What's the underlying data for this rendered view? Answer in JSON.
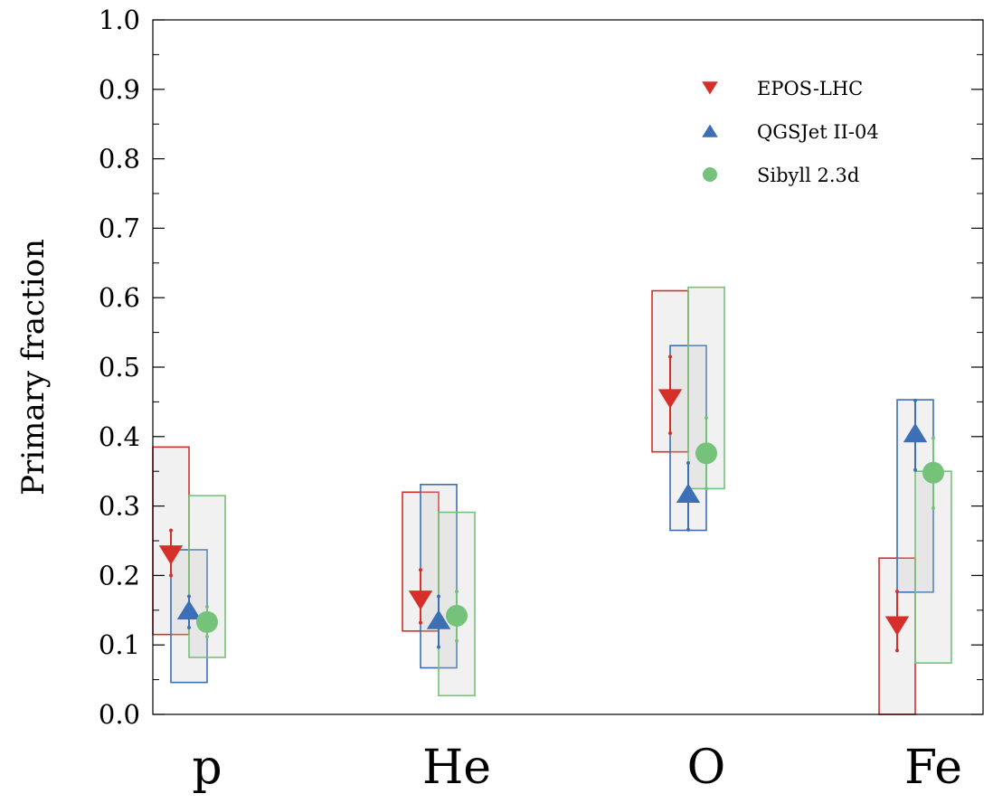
{
  "chart_data": {
    "type": "scatter",
    "title": "",
    "xlabel": "",
    "ylabel": "Primary fraction",
    "categories": [
      "p",
      "He",
      "O",
      "Fe"
    ],
    "ylim": [
      0.0,
      1.0
    ],
    "yticks": [
      "0.0",
      "0.1",
      "0.2",
      "0.3",
      "0.4",
      "0.5",
      "0.6",
      "0.7",
      "0.8",
      "0.9",
      "1.0"
    ],
    "grid": false,
    "legend_position": "top-right",
    "series": [
      {
        "name": "EPOS-LHC",
        "marker": "triangle-down",
        "color": "#d62f2a",
        "values": [
          0.23,
          0.165,
          0.455,
          0.128
        ],
        "stat_err": [
          [
            0.2,
            0.265
          ],
          [
            0.132,
            0.208
          ],
          [
            0.405,
            0.515
          ],
          [
            0.092,
            0.177
          ]
        ],
        "sys_band": [
          [
            0.115,
            0.385
          ],
          [
            0.12,
            0.32
          ],
          [
            0.378,
            0.61
          ],
          [
            0.0,
            0.225
          ]
        ]
      },
      {
        "name": "QGSJet II-04",
        "marker": "triangle-up",
        "color": "#3d6fb6",
        "values": [
          0.15,
          0.136,
          0.318,
          0.405
        ],
        "stat_err": [
          [
            0.125,
            0.17
          ],
          [
            0.097,
            0.17
          ],
          [
            0.266,
            0.362
          ],
          [
            0.352,
            0.452
          ]
        ],
        "sys_band": [
          [
            0.046,
            0.237
          ],
          [
            0.067,
            0.331
          ],
          [
            0.265,
            0.531
          ],
          [
            0.176,
            0.453
          ]
        ]
      },
      {
        "name": "Sibyll 2.3d",
        "marker": "circle",
        "color": "#75c27a",
        "values": [
          0.133,
          0.142,
          0.376,
          0.348
        ],
        "stat_err": [
          [
            0.112,
            0.155
          ],
          [
            0.106,
            0.177
          ],
          [
            0.325,
            0.427
          ],
          [
            0.297,
            0.398
          ]
        ],
        "sys_band": [
          [
            0.082,
            0.315
          ],
          [
            0.027,
            0.291
          ],
          [
            0.325,
            0.615
          ],
          [
            0.074,
            0.35
          ]
        ]
      }
    ]
  }
}
